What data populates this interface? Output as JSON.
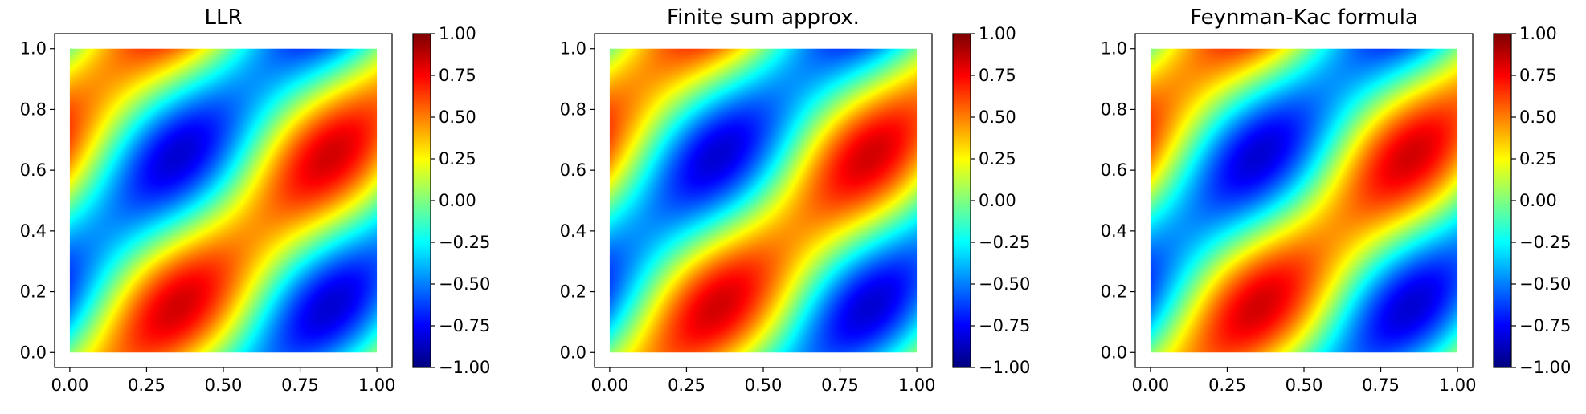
{
  "chart_data": [
    {
      "type": "heatmap",
      "title": "LLR",
      "x_ticks": [
        "0.00",
        "0.25",
        "0.50",
        "0.75",
        "1.00"
      ],
      "y_ticks": [
        "0.0",
        "0.2",
        "0.4",
        "0.6",
        "0.8",
        "1.0"
      ],
      "xlim": [
        0,
        1
      ],
      "ylim": [
        0,
        1
      ],
      "colormap": "jet",
      "color_range": [
        -1.0,
        1.0
      ],
      "colorbar_ticks": [
        "1.00",
        "0.75",
        "0.50",
        "0.25",
        "0.00",
        "−0.25",
        "−0.50",
        "−0.75",
        "−1.00"
      ],
      "grid": false
    },
    {
      "type": "heatmap",
      "title": "Finite sum approx.",
      "x_ticks": [
        "0.00",
        "0.25",
        "0.50",
        "0.75",
        "1.00"
      ],
      "y_ticks": [
        "0.0",
        "0.2",
        "0.4",
        "0.6",
        "0.8",
        "1.0"
      ],
      "xlim": [
        0,
        1
      ],
      "ylim": [
        0,
        1
      ],
      "colormap": "jet",
      "color_range": [
        -1.0,
        1.0
      ],
      "colorbar_ticks": [
        "1.00",
        "0.75",
        "0.50",
        "0.25",
        "0.00",
        "−0.25",
        "−0.50",
        "−0.75",
        "−1.00"
      ],
      "grid": false
    },
    {
      "type": "heatmap",
      "title": "Feynman-Kac formula",
      "x_ticks": [
        "0.00",
        "0.25",
        "0.50",
        "0.75",
        "1.00"
      ],
      "y_ticks": [
        "0.0",
        "0.2",
        "0.4",
        "0.6",
        "0.8",
        "1.0"
      ],
      "xlim": [
        0,
        1
      ],
      "ylim": [
        0,
        1
      ],
      "colormap": "jet",
      "color_range": [
        -1.0,
        1.0
      ],
      "colorbar_ticks": [
        "1.00",
        "0.75",
        "0.50",
        "0.25",
        "0.00",
        "−0.25",
        "−0.50",
        "−0.75",
        "−1.00"
      ],
      "grid": false
    }
  ]
}
